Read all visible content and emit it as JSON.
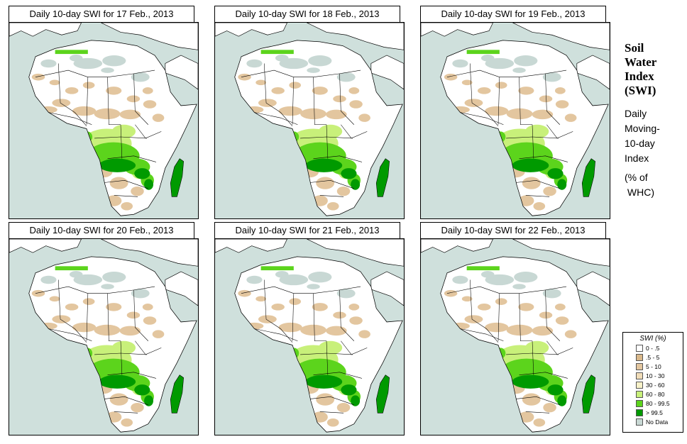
{
  "panels": [
    {
      "title": "Daily 10-day SWI for  17 Feb., 2013",
      "index": 0
    },
    {
      "title": "Daily 10-day SWI for  18 Feb., 2013",
      "index": 1
    },
    {
      "title": "Daily 10-day SWI for  19 Feb., 2013",
      "index": 2
    },
    {
      "title": "Daily 10-day SWI for  20 Feb., 2013",
      "index": 3
    },
    {
      "title": "Daily 10-day SWI for  21 Feb., 2013",
      "index": 4
    },
    {
      "title": "Daily 10-day SWI for  22 Feb., 2013",
      "index": 5
    }
  ],
  "side": {
    "title_lines": [
      "Soil",
      "Water",
      "Index",
      "(SWI)"
    ],
    "subtitle_lines": [
      "Daily",
      "Moving-",
      "10-day",
      "Index"
    ],
    "unit_lines": [
      "(% of",
      " WHC)"
    ]
  },
  "legend": {
    "title": "SWI (%)",
    "items": [
      {
        "label": "0 - .5",
        "color": "#ffffff"
      },
      {
        "label": ".5 - 5",
        "color": "#d9b88a"
      },
      {
        "label": "5 - 10",
        "color": "#e3c69f"
      },
      {
        "label": "10 - 30",
        "color": "#f0dcb8"
      },
      {
        "label": "30 - 60",
        "color": "#f7f1c8"
      },
      {
        "label": "60 - 80",
        "color": "#c8f07a"
      },
      {
        "label": "80 - 99.5",
        "color": "#5cd41c"
      },
      {
        "label": "> 99.5",
        "color": "#009a00"
      },
      {
        "label": "No Data",
        "color": "#c8d8d4"
      }
    ]
  },
  "colors": {
    "ocean": "#cfe0dc",
    "land": "#ffffff",
    "dry": "#e3c69f",
    "wet_light": "#c8f07a",
    "wet": "#5cd41c",
    "saturated": "#009a00",
    "no_data": "#c8d8d4"
  }
}
